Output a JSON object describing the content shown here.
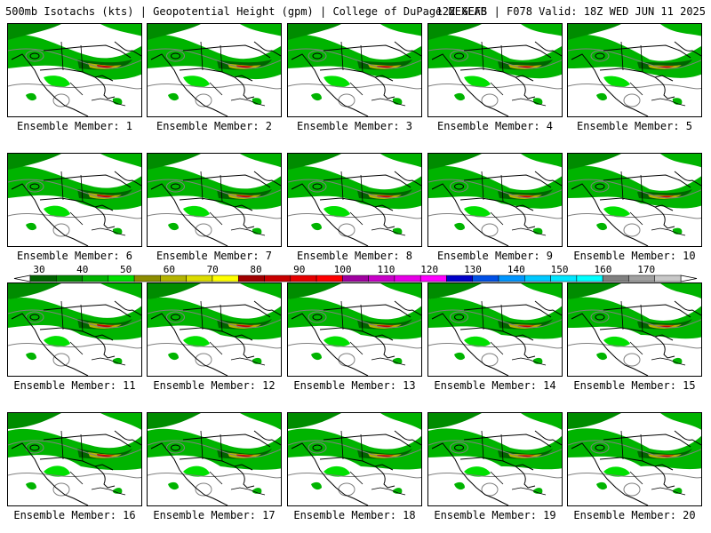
{
  "header": {
    "title_left": "500mb Isotachs (kts) | Geopotential Height (gpm) | College of DuPage NEXLAB",
    "title_right": "12Z GEFS | F078 Valid: 18Z WED JUN 11 2025"
  },
  "panel_labels": [
    "Ensemble Member: 1",
    "Ensemble Member: 2",
    "Ensemble Member: 3",
    "Ensemble Member: 4",
    "Ensemble Member: 5",
    "Ensemble Member: 6",
    "Ensemble Member: 7",
    "Ensemble Member: 8",
    "Ensemble Member: 9",
    "Ensemble Member: 10",
    "Ensemble Member: 11",
    "Ensemble Member: 12",
    "Ensemble Member: 13",
    "Ensemble Member: 14",
    "Ensemble Member: 15",
    "Ensemble Member: 16",
    "Ensemble Member: 17",
    "Ensemble Member: 18",
    "Ensemble Member: 19",
    "Ensemble Member: 20"
  ],
  "colorbar": {
    "tick_labels": [
      "30",
      "40",
      "50",
      "60",
      "70",
      "80",
      "90",
      "100",
      "110",
      "120",
      "130",
      "140",
      "150",
      "160",
      "170"
    ],
    "colors": [
      "#006400",
      "#008c00",
      "#00b400",
      "#00e000",
      "#8c8c00",
      "#b4b400",
      "#dcdc00",
      "#ffff00",
      "#a00000",
      "#c80000",
      "#e60000",
      "#ff0000",
      "#a000a0",
      "#c800c8",
      "#e600e6",
      "#ff00ff",
      "#0000c8",
      "#0050e6",
      "#0096ff",
      "#00c8ff",
      "#00e6ff",
      "#00ffff",
      "#808080",
      "#a0a0a0",
      "#c8c8c8"
    ]
  }
}
